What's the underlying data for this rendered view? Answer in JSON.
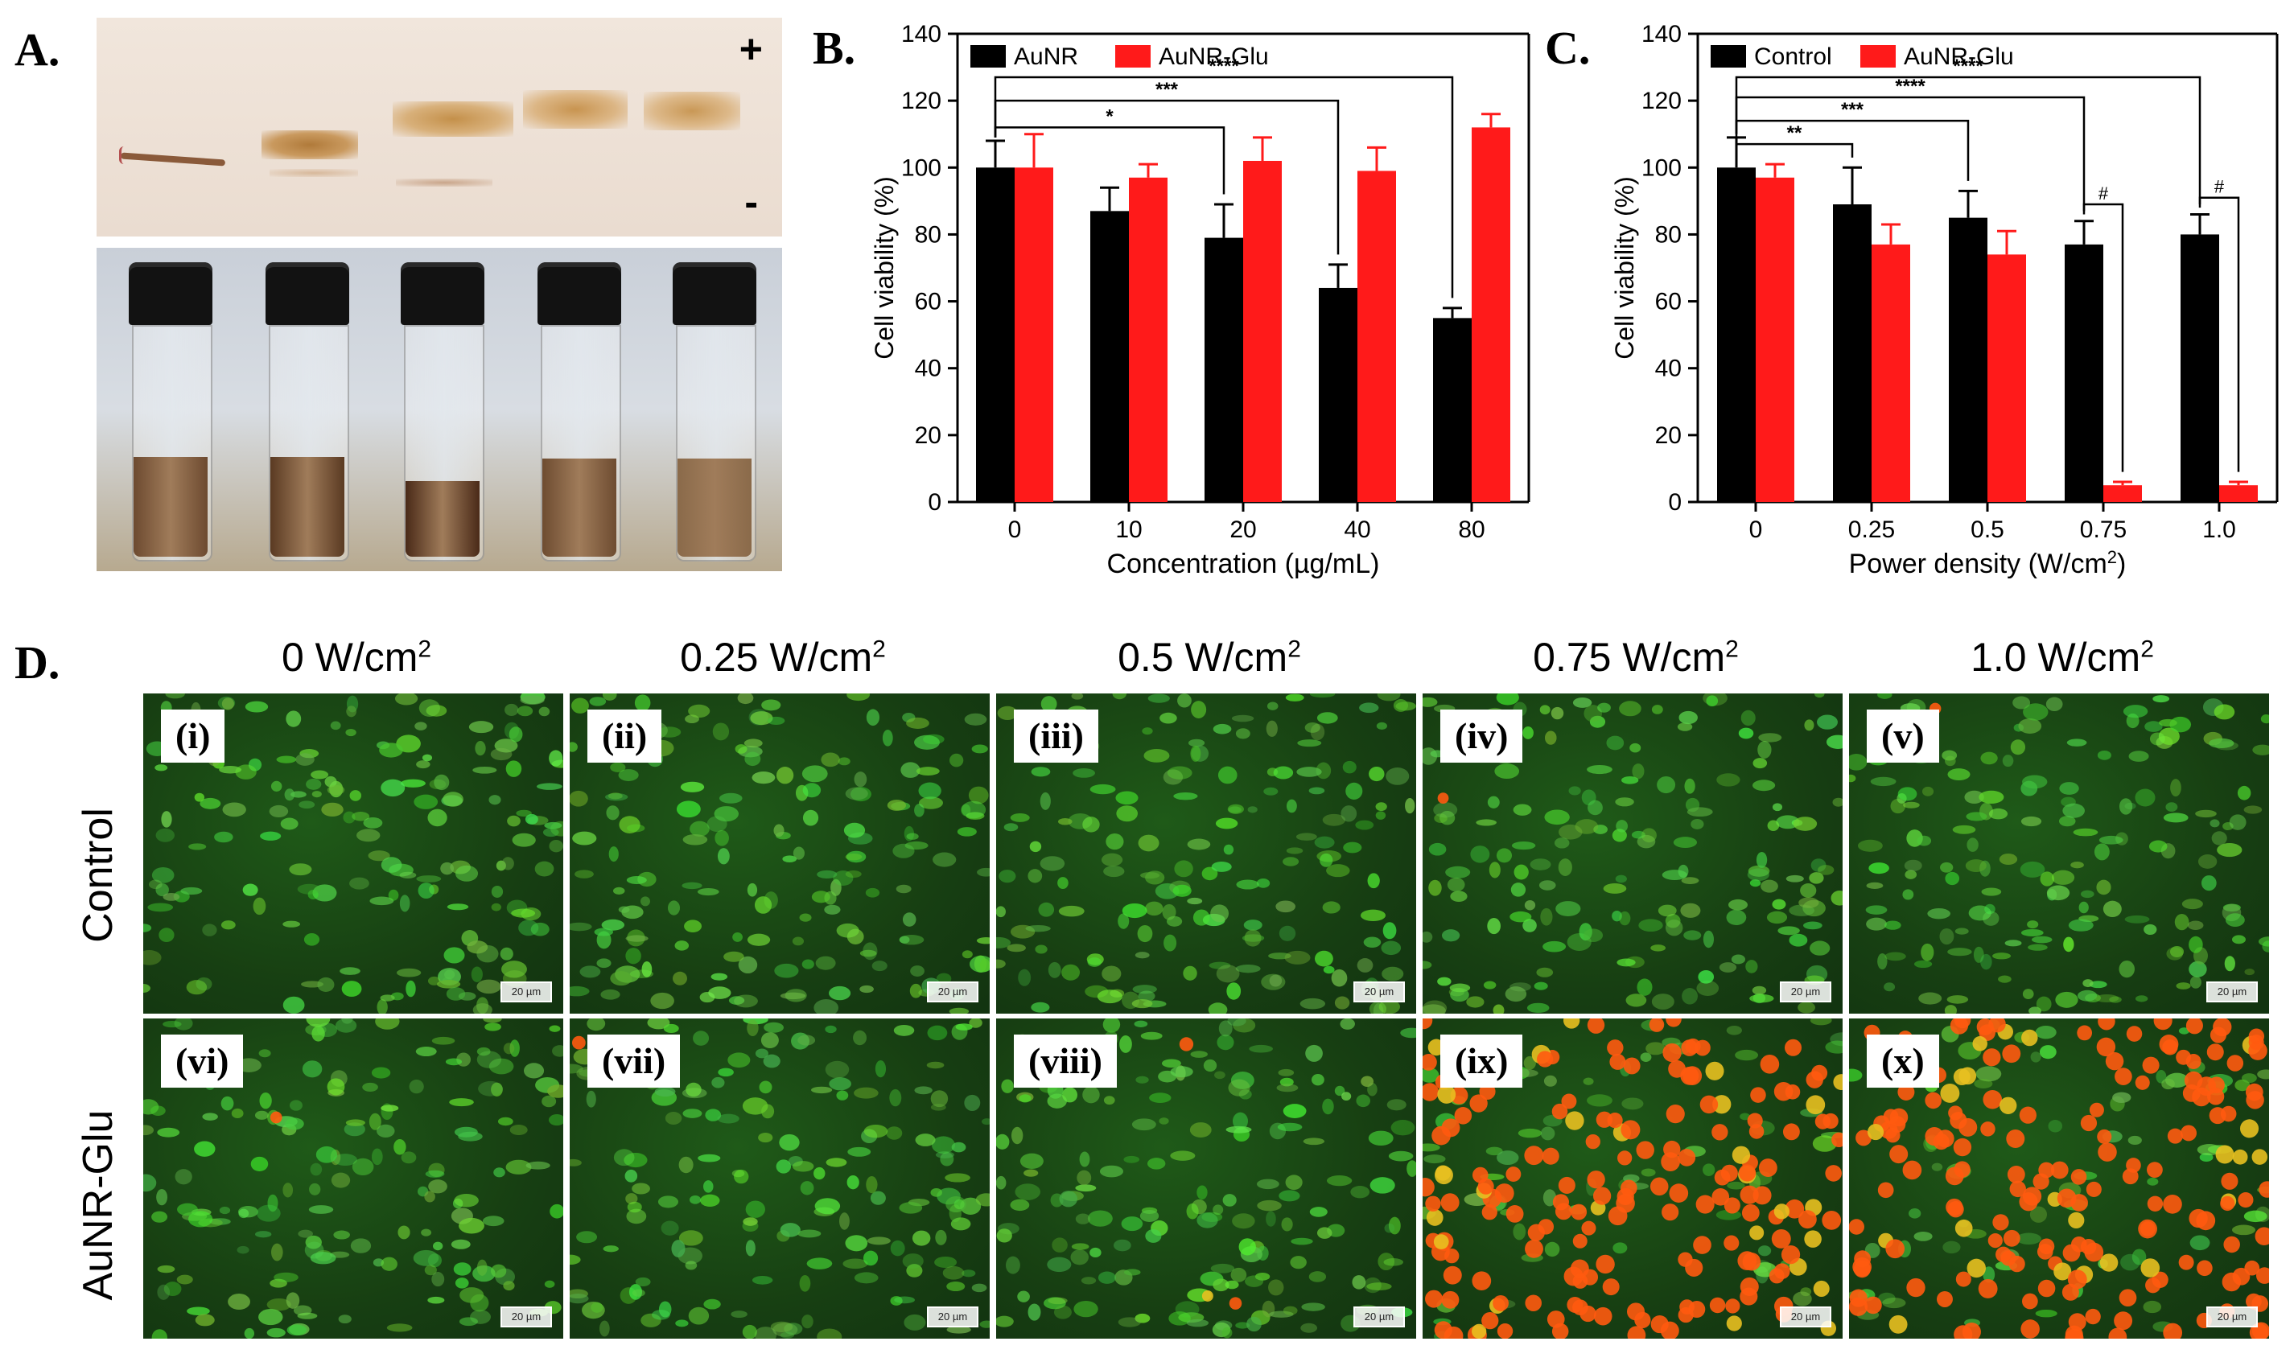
{
  "panels": {
    "a": {
      "letter": "A.",
      "plus": "+",
      "minus": "-"
    },
    "b": {
      "letter": "B."
    },
    "c": {
      "letter": "C."
    },
    "d": {
      "letter": "D.",
      "columns": [
        "0 W/cm",
        "0.25 W/cm",
        "0.5 W/cm",
        "0.75 W/cm",
        "1.0 W/cm"
      ],
      "superscript": "2",
      "rows": [
        "Control",
        "AuNR-Glu"
      ],
      "labels": [
        "(i)",
        "(ii)",
        "(iii)",
        "(iv)",
        "(v)",
        "(vi)",
        "(vii)",
        "(viii)",
        "(ix)",
        "(x)"
      ],
      "scalebar": "20 µm",
      "red_cell_fraction": [
        0.0,
        0.0,
        0.0,
        0.01,
        0.01,
        0.005,
        0.01,
        0.03,
        0.95,
        0.95
      ]
    }
  },
  "colors": {
    "black_series": "#000000",
    "red_series": "#ff1a1a",
    "green_cells": "#2fae22",
    "red_cells": "#ff5a10"
  },
  "chart_data": [
    {
      "type": "bar",
      "title": "",
      "xlabel": "Concentration (µg/mL)",
      "ylabel": "Cell viability (%)",
      "ylim": [
        0,
        140
      ],
      "yticks": [
        0,
        20,
        40,
        60,
        80,
        100,
        120,
        140
      ],
      "categories": [
        "0",
        "10",
        "20",
        "40",
        "80"
      ],
      "series": [
        {
          "name": "AuNR",
          "color": "#000000",
          "values": [
            100,
            87,
            79,
            64,
            55
          ],
          "errors": [
            8,
            7,
            10,
            7,
            3
          ]
        },
        {
          "name": "AuNR-Glu",
          "color": "#ff1a1a",
          "values": [
            100,
            97,
            102,
            99,
            112
          ],
          "errors": [
            10,
            4,
            7,
            7,
            4
          ]
        }
      ],
      "legend": "top-left",
      "annotations": [
        {
          "text": "*",
          "from": "0",
          "to": "20",
          "y": 112
        },
        {
          "text": "***",
          "from": "0",
          "to": "40",
          "y": 120
        },
        {
          "text": "****",
          "from": "0",
          "to": "80",
          "y": 127
        }
      ]
    },
    {
      "type": "bar",
      "title": "",
      "xlabel": "Power density (W/cm",
      "xlabel_sup": "2",
      "xlabel_end": ")",
      "ylabel": "Cell viability (%)",
      "ylim": [
        0,
        140
      ],
      "yticks": [
        0,
        20,
        40,
        60,
        80,
        100,
        120,
        140
      ],
      "categories": [
        "0",
        "0.25",
        "0.5",
        "0.75",
        "1.0"
      ],
      "series": [
        {
          "name": "Control",
          "color": "#000000",
          "values": [
            100,
            89,
            85,
            77,
            80
          ],
          "errors": [
            9,
            11,
            8,
            7,
            6
          ]
        },
        {
          "name": "AuNR-Glu",
          "color": "#ff1a1a",
          "values": [
            97,
            77,
            74,
            5,
            5
          ],
          "errors": [
            4,
            6,
            7,
            1,
            1
          ]
        }
      ],
      "legend": "top-left",
      "annotations": [
        {
          "text": "**",
          "from": "0",
          "to": "0.25",
          "y": 107
        },
        {
          "text": "***",
          "from": "0",
          "to": "0.5",
          "y": 114
        },
        {
          "text": "****",
          "from": "0",
          "to": "0.75",
          "y": 121
        },
        {
          "text": "****",
          "from": "0",
          "to": "1.0",
          "y": 127
        },
        {
          "text": "#",
          "from": "0.75",
          "to": "0.75",
          "y": 89,
          "pair": true
        },
        {
          "text": "#",
          "from": "1.0",
          "to": "1.0",
          "y": 91,
          "pair": true
        }
      ]
    }
  ]
}
